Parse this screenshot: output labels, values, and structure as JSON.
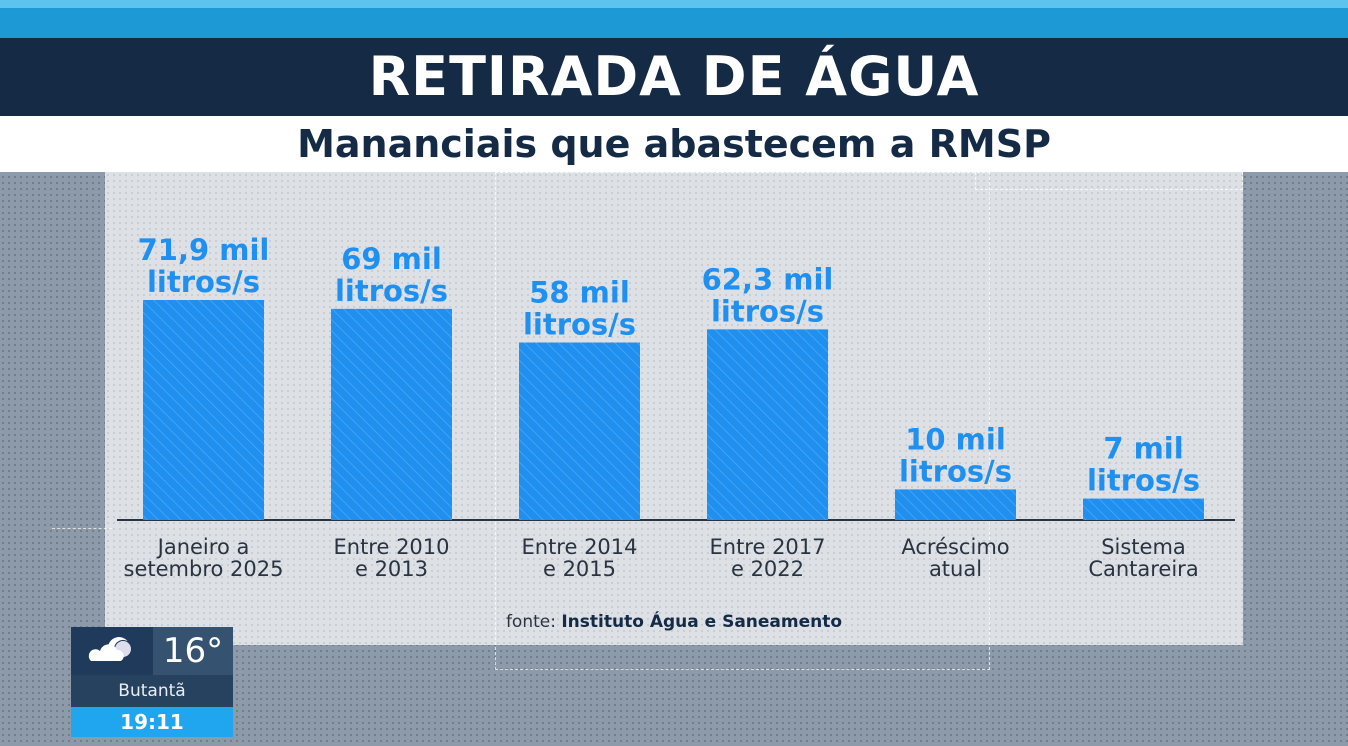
{
  "header": {
    "title": "RETIRADA DE ÁGUA",
    "subtitle": "Mananciais que abastecem a RMSP"
  },
  "chart_data": {
    "type": "bar",
    "title": "RETIRADA DE ÁGUA",
    "subtitle": "Mananciais que abastecem a RMSP",
    "unit": "mil litros/s",
    "categories": [
      [
        "Janeiro a",
        "setembro 2025"
      ],
      [
        "Entre 2010",
        "e 2013"
      ],
      [
        "Entre 2014",
        "e 2015"
      ],
      [
        "Entre 2017",
        "e 2022"
      ],
      [
        "Acréscimo",
        "atual"
      ],
      [
        "Sistema",
        "Cantareira"
      ]
    ],
    "values": [
      71.9,
      69,
      58,
      62.3,
      10,
      7
    ],
    "labels": [
      [
        "71,9 mil",
        "litros/s"
      ],
      [
        "69 mil",
        "litros/s"
      ],
      [
        "58 mil",
        "litros/s"
      ],
      [
        "62,3 mil",
        "litros/s"
      ],
      [
        "10 mil",
        "litros/s"
      ],
      [
        "7 mil",
        "litros/s"
      ]
    ],
    "bar_color": "#1f8ff0",
    "ylim": [
      0,
      72
    ]
  },
  "source": {
    "prefix": "fonte:",
    "name": "Instituto Água e Saneamento"
  },
  "weather": {
    "icon": "cloud-moon-icon",
    "temperature": "16°",
    "location": "Butantã",
    "time": "19:11"
  }
}
